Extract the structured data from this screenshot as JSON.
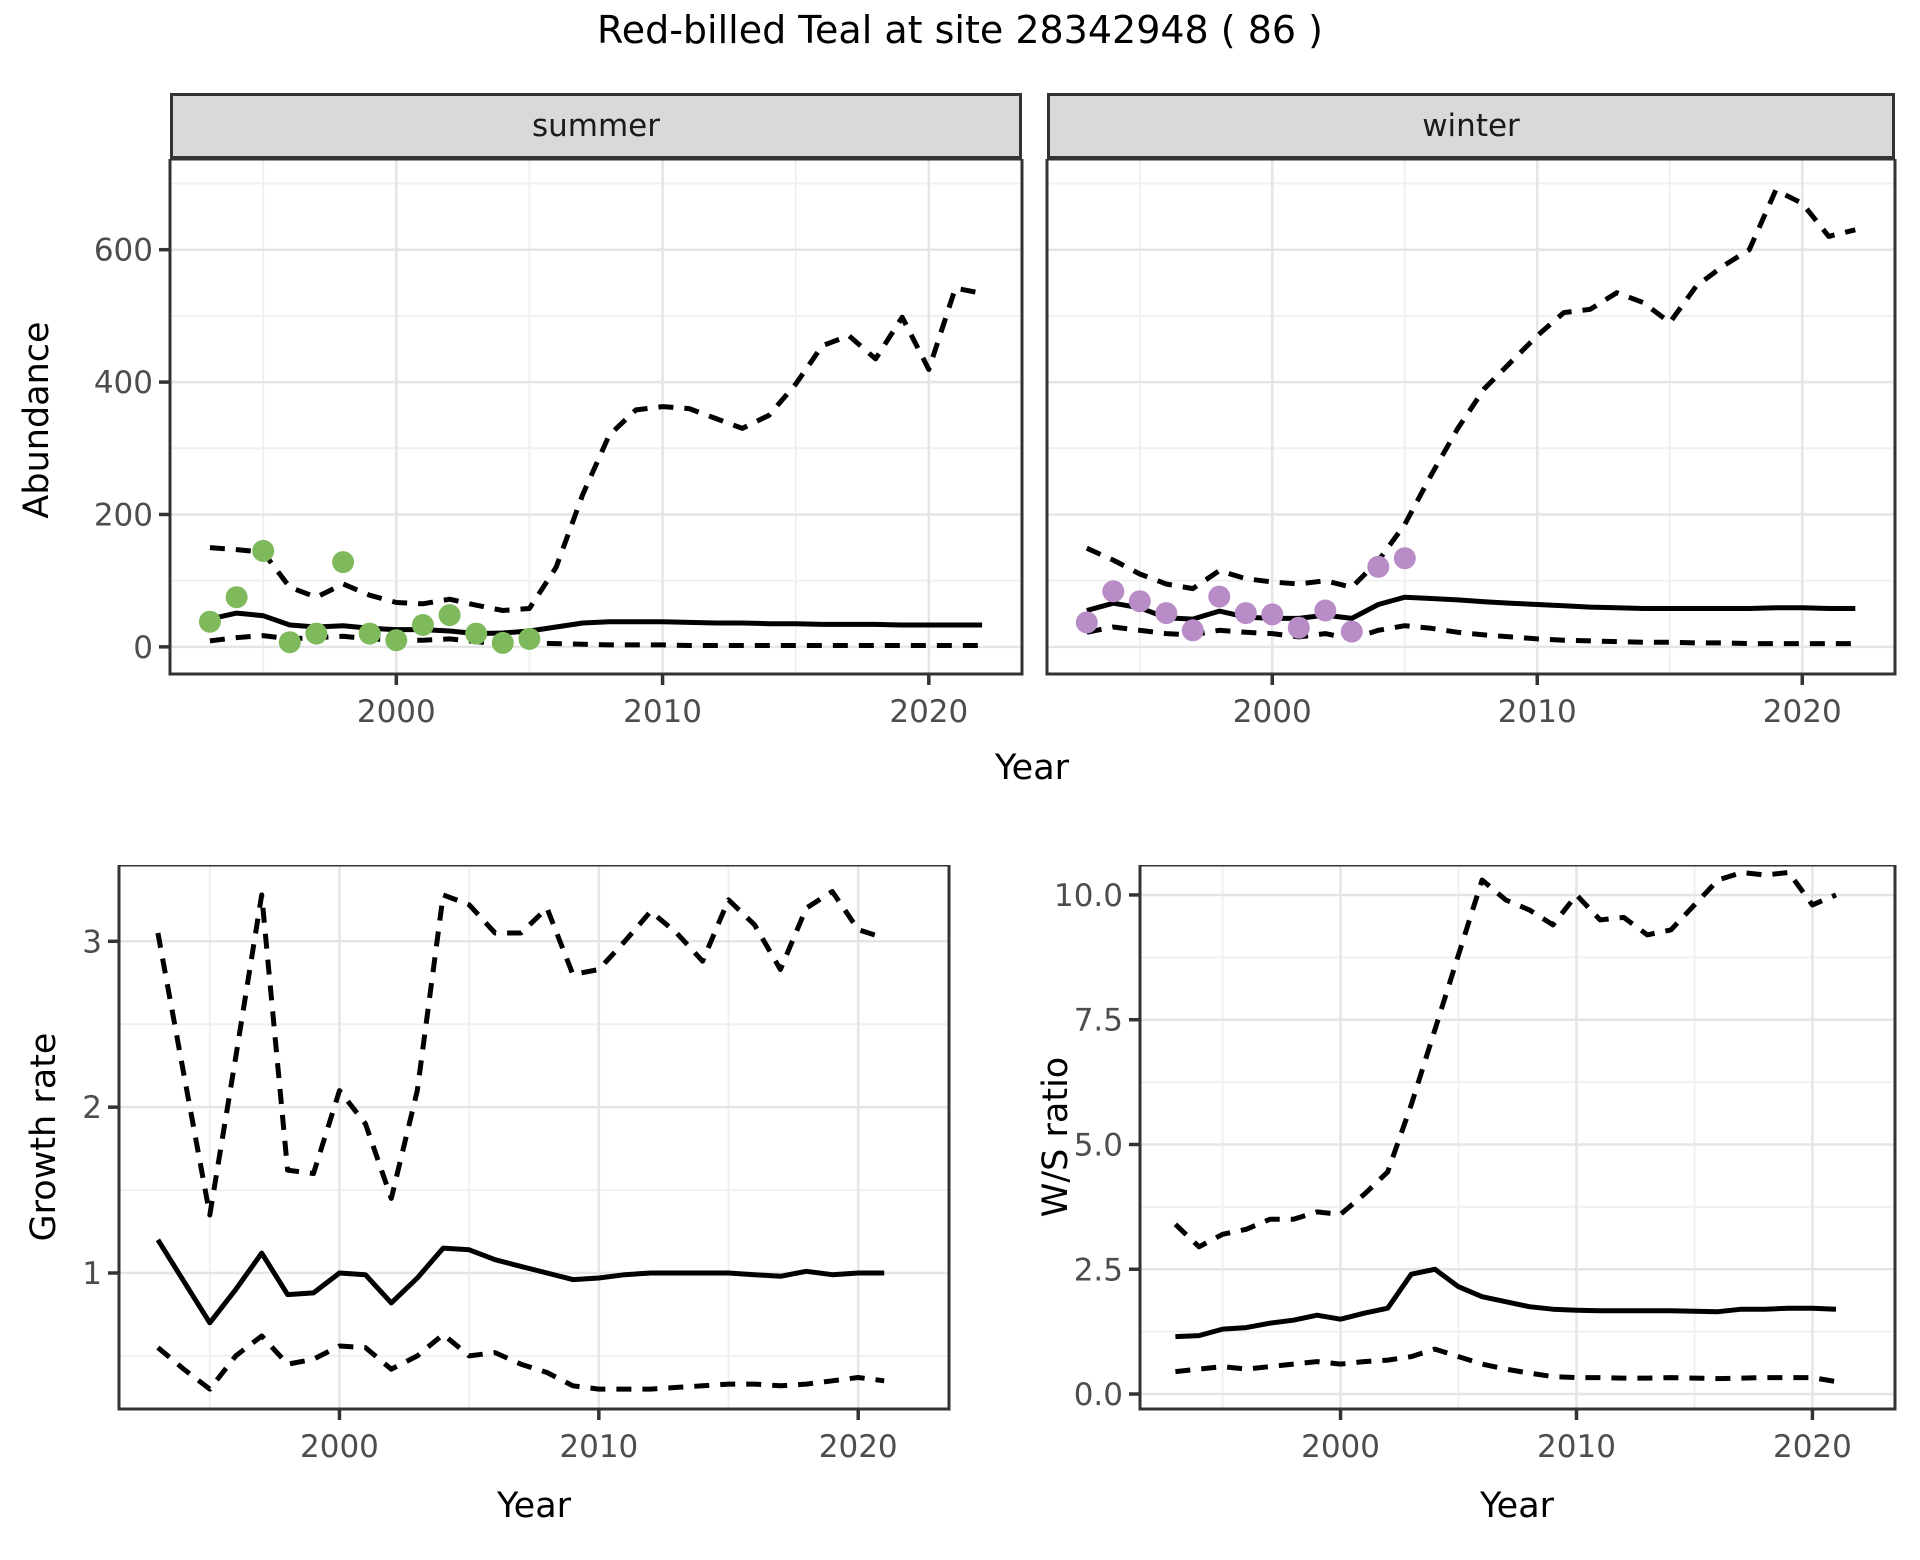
{
  "title": "Red-billed Teal at site 28342948 ( 86 )",
  "shared_axes": {
    "abundance_label": "Abundance",
    "year_label": "Year"
  },
  "style": {
    "summer_point_color": "#7EBA5C",
    "winter_point_color": "#B88DC7",
    "line_color": "#000000",
    "strip_fill": "#D9D9D9",
    "panel_border": "#333333",
    "grid_major": "#E5E5E5",
    "grid_minor": "#F0F0F0",
    "tick_text": "#4D4D4D"
  },
  "chart_data": [
    {
      "name": "abundance-summer",
      "type": "line",
      "facet_label": "summer",
      "xlabel": "Year",
      "ylabel": "Abundance",
      "xlim": [
        1991.5,
        2023.5
      ],
      "ylim": [
        -41,
        737
      ],
      "xticks": {
        "values": [
          2000,
          2010,
          2020
        ],
        "labels": [
          "2000",
          "2010",
          "2020"
        ]
      },
      "xminor": [
        1995,
        2005,
        2015
      ],
      "yticks": {
        "values": [
          0,
          200,
          400,
          600
        ],
        "labels": [
          "0",
          "200",
          "400",
          "600"
        ],
        "show_labels": true
      },
      "yminor": [
        100,
        300,
        500,
        700
      ],
      "years": [
        1993,
        1994,
        1995,
        1996,
        1997,
        1998,
        1999,
        2000,
        2001,
        2002,
        2003,
        2004,
        2005,
        2006,
        2007,
        2008,
        2009,
        2010,
        2011,
        2012,
        2013,
        2014,
        2015,
        2016,
        2017,
        2018,
        2019,
        2020,
        2021,
        2022
      ],
      "lines": [
        {
          "name": "upper-ci",
          "style": "dashed",
          "values": [
            150,
            147,
            143,
            90,
            75,
            95,
            78,
            67,
            65,
            72,
            63,
            55,
            58,
            120,
            230,
            320,
            358,
            363,
            360,
            345,
            330,
            350,
            397,
            455,
            470,
            435,
            498,
            419,
            542,
            534
          ]
        },
        {
          "name": "median",
          "style": "solid",
          "values": [
            42,
            51,
            47,
            33,
            30,
            32,
            28,
            26,
            26,
            24,
            20,
            21,
            24,
            30,
            36,
            38,
            38,
            38,
            37,
            36,
            36,
            35,
            35,
            34,
            34,
            34,
            33,
            33,
            33,
            33
          ]
        },
        {
          "name": "lower-ci",
          "style": "dashed",
          "values": [
            9,
            14,
            17,
            12,
            14,
            16,
            12,
            10,
            10,
            12,
            8,
            4,
            6,
            5,
            4,
            3,
            3,
            3,
            2,
            2,
            2,
            2,
            2,
            2,
            2,
            2,
            2,
            2,
            2,
            2
          ]
        }
      ],
      "points": {
        "name": "observed-counts",
        "color": "#7EBA5C",
        "years": [
          1993,
          1994,
          1995,
          1996,
          1997,
          1998,
          1999,
          2000,
          2001,
          2002,
          2003,
          2004,
          2005
        ],
        "values": [
          38,
          75,
          145,
          7,
          20,
          128,
          20,
          10,
          33,
          48,
          20,
          6,
          12
        ]
      }
    },
    {
      "name": "abundance-winter",
      "type": "line",
      "facet_label": "winter",
      "xlabel": "Year",
      "ylabel": "Abundance",
      "xlim": [
        1991.5,
        2023.5
      ],
      "ylim": [
        -41,
        737
      ],
      "xticks": {
        "values": [
          2000,
          2010,
          2020
        ],
        "labels": [
          "2000",
          "2010",
          "2020"
        ]
      },
      "xminor": [
        1995,
        2005,
        2015
      ],
      "yticks": {
        "values": [
          0,
          200,
          400,
          600
        ],
        "labels": [
          "0",
          "200",
          "400",
          "600"
        ],
        "show_labels": false
      },
      "yminor": [
        100,
        300,
        500,
        700
      ],
      "years": [
        1993,
        1994,
        1995,
        1996,
        1997,
        1998,
        1999,
        2000,
        2001,
        2002,
        2003,
        2004,
        2005,
        2006,
        2007,
        2008,
        2009,
        2010,
        2011,
        2012,
        2013,
        2014,
        2015,
        2016,
        2017,
        2018,
        2019,
        2020,
        2021,
        2022
      ],
      "lines": [
        {
          "name": "upper-ci",
          "style": "dashed",
          "values": [
            149,
            131,
            110,
            95,
            88,
            115,
            103,
            98,
            95,
            100,
            90,
            130,
            185,
            260,
            330,
            390,
            430,
            470,
            505,
            510,
            535,
            520,
            490,
            545,
            575,
            600,
            690,
            670,
            620,
            630
          ]
        },
        {
          "name": "median",
          "style": "solid",
          "values": [
            55,
            66,
            59,
            44,
            42,
            54,
            45,
            43,
            43,
            48,
            43,
            64,
            75,
            73,
            71,
            68,
            66,
            64,
            62,
            60,
            59,
            58,
            58,
            58,
            58,
            58,
            59,
            59,
            58,
            58
          ]
        },
        {
          "name": "lower-ci",
          "style": "dashed",
          "values": [
            22,
            30,
            25,
            20,
            18,
            25,
            22,
            20,
            15,
            20,
            12,
            25,
            32,
            28,
            22,
            18,
            15,
            12,
            10,
            9,
            8,
            7,
            7,
            6,
            6,
            5,
            5,
            5,
            5,
            5
          ]
        }
      ],
      "points": {
        "name": "observed-counts",
        "color": "#B88DC7",
        "years": [
          1993,
          1994,
          1995,
          1996,
          1997,
          1998,
          1999,
          2000,
          2001,
          2002,
          2003,
          2004,
          2005
        ],
        "values": [
          37,
          84,
          69,
          51,
          25,
          76,
          51,
          49,
          29,
          55,
          23,
          121,
          134
        ]
      }
    },
    {
      "name": "growth-rate",
      "type": "line",
      "facet_label": "",
      "xlabel": "Year",
      "ylabel": "Growth rate",
      "xlim": [
        1991.5,
        2023.5
      ],
      "ylim": [
        0.18,
        3.46
      ],
      "xticks": {
        "values": [
          2000,
          2010,
          2020
        ],
        "labels": [
          "2000",
          "2010",
          "2020"
        ]
      },
      "xminor": [
        1995,
        2005,
        2015
      ],
      "yticks": {
        "values": [
          1,
          2,
          3
        ],
        "labels": [
          "1",
          "2",
          "3"
        ],
        "show_labels": true
      },
      "yminor": [
        0.5,
        1.5,
        2.5,
        3.5
      ],
      "years": [
        1993,
        1994,
        1995,
        1996,
        1997,
        1998,
        1999,
        2000,
        2001,
        2002,
        2003,
        2004,
        2005,
        2006,
        2007,
        2008,
        2009,
        2010,
        2011,
        2012,
        2013,
        2014,
        2015,
        2016,
        2017,
        2018,
        2019,
        2020,
        2021
      ],
      "lines": [
        {
          "name": "upper-ci",
          "style": "dashed",
          "values": [
            3.05,
            2.2,
            1.35,
            2.3,
            3.28,
            1.62,
            1.6,
            2.1,
            1.9,
            1.45,
            2.1,
            3.28,
            3.22,
            3.05,
            3.05,
            3.2,
            2.8,
            2.83,
            3.0,
            3.18,
            3.05,
            2.88,
            3.25,
            3.1,
            2.83,
            3.2,
            3.3,
            3.07,
            3.02
          ]
        },
        {
          "name": "median",
          "style": "solid",
          "values": [
            1.2,
            0.95,
            0.7,
            0.9,
            1.12,
            0.87,
            0.88,
            1.0,
            0.99,
            0.82,
            0.97,
            1.15,
            1.14,
            1.08,
            1.04,
            1.0,
            0.96,
            0.97,
            0.99,
            1.0,
            1.0,
            1.0,
            1.0,
            0.99,
            0.98,
            1.01,
            0.99,
            1.0,
            1.0
          ]
        },
        {
          "name": "lower-ci",
          "style": "dashed",
          "values": [
            0.55,
            0.42,
            0.3,
            0.5,
            0.62,
            0.45,
            0.48,
            0.56,
            0.55,
            0.42,
            0.5,
            0.63,
            0.5,
            0.52,
            0.45,
            0.4,
            0.32,
            0.3,
            0.3,
            0.3,
            0.31,
            0.32,
            0.33,
            0.33,
            0.32,
            0.33,
            0.35,
            0.37,
            0.35
          ]
        }
      ],
      "points": null
    },
    {
      "name": "ws-ratio",
      "type": "line",
      "facet_label": "",
      "xlabel": "Year",
      "ylabel": "W/S ratio",
      "xlim": [
        1991.5,
        2023.5
      ],
      "ylim": [
        -0.3,
        10.6
      ],
      "xticks": {
        "values": [
          2000,
          2010,
          2020
        ],
        "labels": [
          "2000",
          "2010",
          "2020"
        ]
      },
      "xminor": [
        1995,
        2005,
        2015
      ],
      "yticks": {
        "values": [
          0.0,
          2.5,
          5.0,
          7.5,
          10.0
        ],
        "labels": [
          "0.0",
          "2.5",
          "5.0",
          "7.5",
          "10.0"
        ],
        "show_labels": true
      },
      "yminor": [
        1.25,
        3.75,
        6.25,
        8.75
      ],
      "years": [
        1993,
        1994,
        1995,
        1996,
        1997,
        1998,
        1999,
        2000,
        2001,
        2002,
        2003,
        2004,
        2005,
        2006,
        2007,
        2008,
        2009,
        2010,
        2011,
        2012,
        2013,
        2014,
        2015,
        2016,
        2017,
        2018,
        2019,
        2020,
        2021
      ],
      "lines": [
        {
          "name": "upper-ci",
          "style": "dashed",
          "values": [
            3.4,
            2.95,
            3.2,
            3.3,
            3.5,
            3.5,
            3.65,
            3.6,
            4.0,
            4.45,
            5.8,
            7.3,
            8.8,
            10.3,
            9.9,
            9.7,
            9.4,
            10.0,
            9.5,
            9.55,
            9.2,
            9.3,
            9.8,
            10.3,
            10.45,
            10.4,
            10.45,
            9.8,
            10.0
          ]
        },
        {
          "name": "median",
          "style": "solid",
          "values": [
            1.15,
            1.17,
            1.3,
            1.33,
            1.42,
            1.48,
            1.58,
            1.5,
            1.62,
            1.72,
            2.4,
            2.5,
            2.15,
            1.95,
            1.85,
            1.75,
            1.7,
            1.68,
            1.67,
            1.67,
            1.67,
            1.67,
            1.66,
            1.65,
            1.7,
            1.7,
            1.72,
            1.72,
            1.7
          ]
        },
        {
          "name": "lower-ci",
          "style": "dashed",
          "values": [
            0.45,
            0.5,
            0.55,
            0.5,
            0.55,
            0.6,
            0.65,
            0.6,
            0.65,
            0.68,
            0.75,
            0.9,
            0.75,
            0.6,
            0.5,
            0.42,
            0.35,
            0.33,
            0.33,
            0.32,
            0.32,
            0.33,
            0.32,
            0.31,
            0.32,
            0.33,
            0.33,
            0.33,
            0.25
          ]
        }
      ],
      "points": null
    }
  ]
}
